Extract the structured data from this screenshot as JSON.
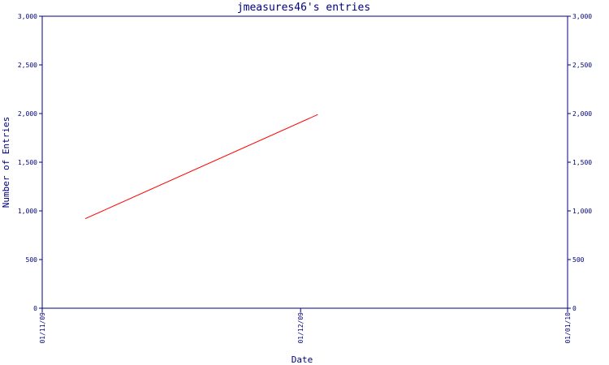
{
  "chart_data": {
    "type": "line",
    "title": "jmeasures46's entries",
    "xlabel": "Date",
    "ylabel": "Number of Entries",
    "x_ticks": [
      "01/11/09",
      "01/12/09",
      "01/01/10"
    ],
    "y_ticks": [
      "0",
      "500",
      "1,000",
      "1,500",
      "2,000",
      "2,500",
      "3,000"
    ],
    "ylim": [
      0,
      3000
    ],
    "xlim": [
      "2009-11-01",
      "2010-01-01"
    ],
    "y_axis_right": true,
    "grid": false,
    "colors": {
      "axis": "#00007f",
      "series": "#ff0000",
      "background": "#ffffff"
    },
    "series": [
      {
        "x": [
          "2009-11-06",
          "2009-12-03"
        ],
        "y": [
          920,
          1990
        ]
      }
    ]
  }
}
